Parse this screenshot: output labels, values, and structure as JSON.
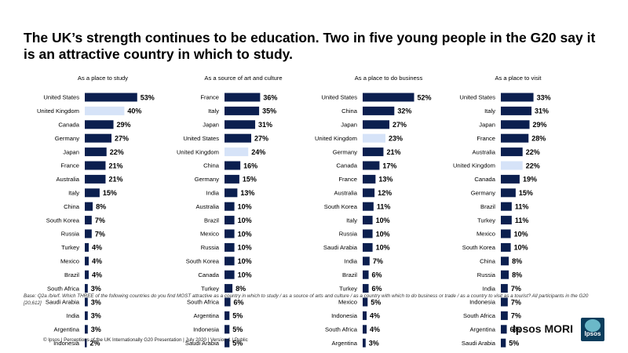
{
  "title": "The UK’s strength continues to be education. Two in five young people in the G20 say it is an attractive country in which to study.",
  "colors": {
    "bar": "#0b1f4f",
    "highlight": "#d6e3f8",
    "text": "#000000"
  },
  "chart_data": [
    {
      "type": "bar",
      "orientation": "horizontal",
      "title": "As a place to study",
      "categories": [
        "United States",
        "United Kingdom",
        "Canada",
        "Germany",
        "Japan",
        "France",
        "Australia",
        "Italy",
        "China",
        "South Korea",
        "Russia",
        "Turkey",
        "Mexico",
        "Brazil",
        "South Africa",
        "Saudi Arabia",
        "India",
        "Argentina",
        "Indonesia"
      ],
      "values": [
        53,
        40,
        29,
        27,
        22,
        21,
        21,
        15,
        8,
        7,
        7,
        4,
        4,
        4,
        3,
        3,
        3,
        3,
        2
      ],
      "value_labels": [
        "53%",
        "40%",
        "29%",
        "27%",
        "22%",
        "21%",
        "21%",
        "15%",
        "8%",
        "7%",
        "7%",
        "4%",
        "4%",
        "4%",
        "3%",
        "3%",
        "3%",
        "3%",
        "2%"
      ],
      "highlight": "United Kingdom"
    },
    {
      "type": "bar",
      "orientation": "horizontal",
      "title": "As a source of art and culture",
      "categories": [
        "France",
        "Italy",
        "Japan",
        "United States",
        "United Kingdom",
        "China",
        "Germany",
        "India",
        "Australia",
        "Brazil",
        "Mexico",
        "Russia",
        "South Korea",
        "Canada",
        "Turkey",
        "South Africa",
        "Argentina",
        "Indonesia",
        "Saudi Arabia"
      ],
      "values": [
        36,
        35,
        31,
        27,
        24,
        16,
        15,
        13,
        10,
        10,
        10,
        10,
        10,
        10,
        8,
        6,
        5,
        5,
        5
      ],
      "value_labels": [
        "36%",
        "35%",
        "31%",
        "27%",
        "24%",
        "16%",
        "15%",
        "13%",
        "10%",
        "10%",
        "10%",
        "10%",
        "10%",
        "10%",
        "8%",
        "6%",
        "5%",
        "5%",
        "5%"
      ],
      "highlight": "United Kingdom"
    },
    {
      "type": "bar",
      "orientation": "horizontal",
      "title": "As a place to do business",
      "categories": [
        "United States",
        "China",
        "Japan",
        "United Kingdom",
        "Germany",
        "Canada",
        "France",
        "Australia",
        "South Korea",
        "Italy",
        "Russia",
        "Saudi Arabia",
        "India",
        "Brazil",
        "Turkey",
        "Mexico",
        "Indonesia",
        "South Africa",
        "Argentina"
      ],
      "values": [
        52,
        32,
        27,
        23,
        21,
        17,
        13,
        12,
        11,
        10,
        10,
        10,
        7,
        6,
        6,
        5,
        4,
        4,
        3
      ],
      "value_labels": [
        "52%",
        "32%",
        "27%",
        "23%",
        "21%",
        "17%",
        "13%",
        "12%",
        "11%",
        "10%",
        "10%",
        "10%",
        "7%",
        "6%",
        "6%",
        "5%",
        "4%",
        "4%",
        "3%"
      ],
      "highlight": "United Kingdom"
    },
    {
      "type": "bar",
      "orientation": "horizontal",
      "title": "As a place to visit",
      "categories": [
        "United States",
        "Italy",
        "Japan",
        "France",
        "Australia",
        "United Kingdom",
        "Canada",
        "Germany",
        "Brazil",
        "Turkey",
        "Mexico",
        "South Korea",
        "China",
        "Russia",
        "India",
        "Indonesia",
        "South Africa",
        "Argentina",
        "Saudi Arabia"
      ],
      "values": [
        33,
        31,
        29,
        28,
        22,
        22,
        19,
        15,
        11,
        11,
        10,
        10,
        8,
        8,
        7,
        7,
        7,
        6,
        5
      ],
      "value_labels": [
        "33%",
        "31%",
        "29%",
        "28%",
        "22%",
        "22%",
        "19%",
        "15%",
        "11%",
        "11%",
        "10%",
        "10%",
        "8%",
        "8%",
        "7%",
        "7%",
        "7%",
        "6%",
        "5%"
      ],
      "highlight": "United Kingdom"
    }
  ],
  "base_note": "Base: Q2a /b/e/f. Which THREE of the following countries do you find MOST attractive as a country in which to study / as a source of arts and culture / as a country with which to do business or trade / as a country to visit as a tourist? All participants in the G20 [20,612]",
  "footer": "© Ipsos | Perceptions of the UK Internationally G20 Presentation | July 2020 | Version 1 | Public",
  "brand": {
    "name": "Ipsos MORI",
    "logo_text": "Ipsos"
  }
}
